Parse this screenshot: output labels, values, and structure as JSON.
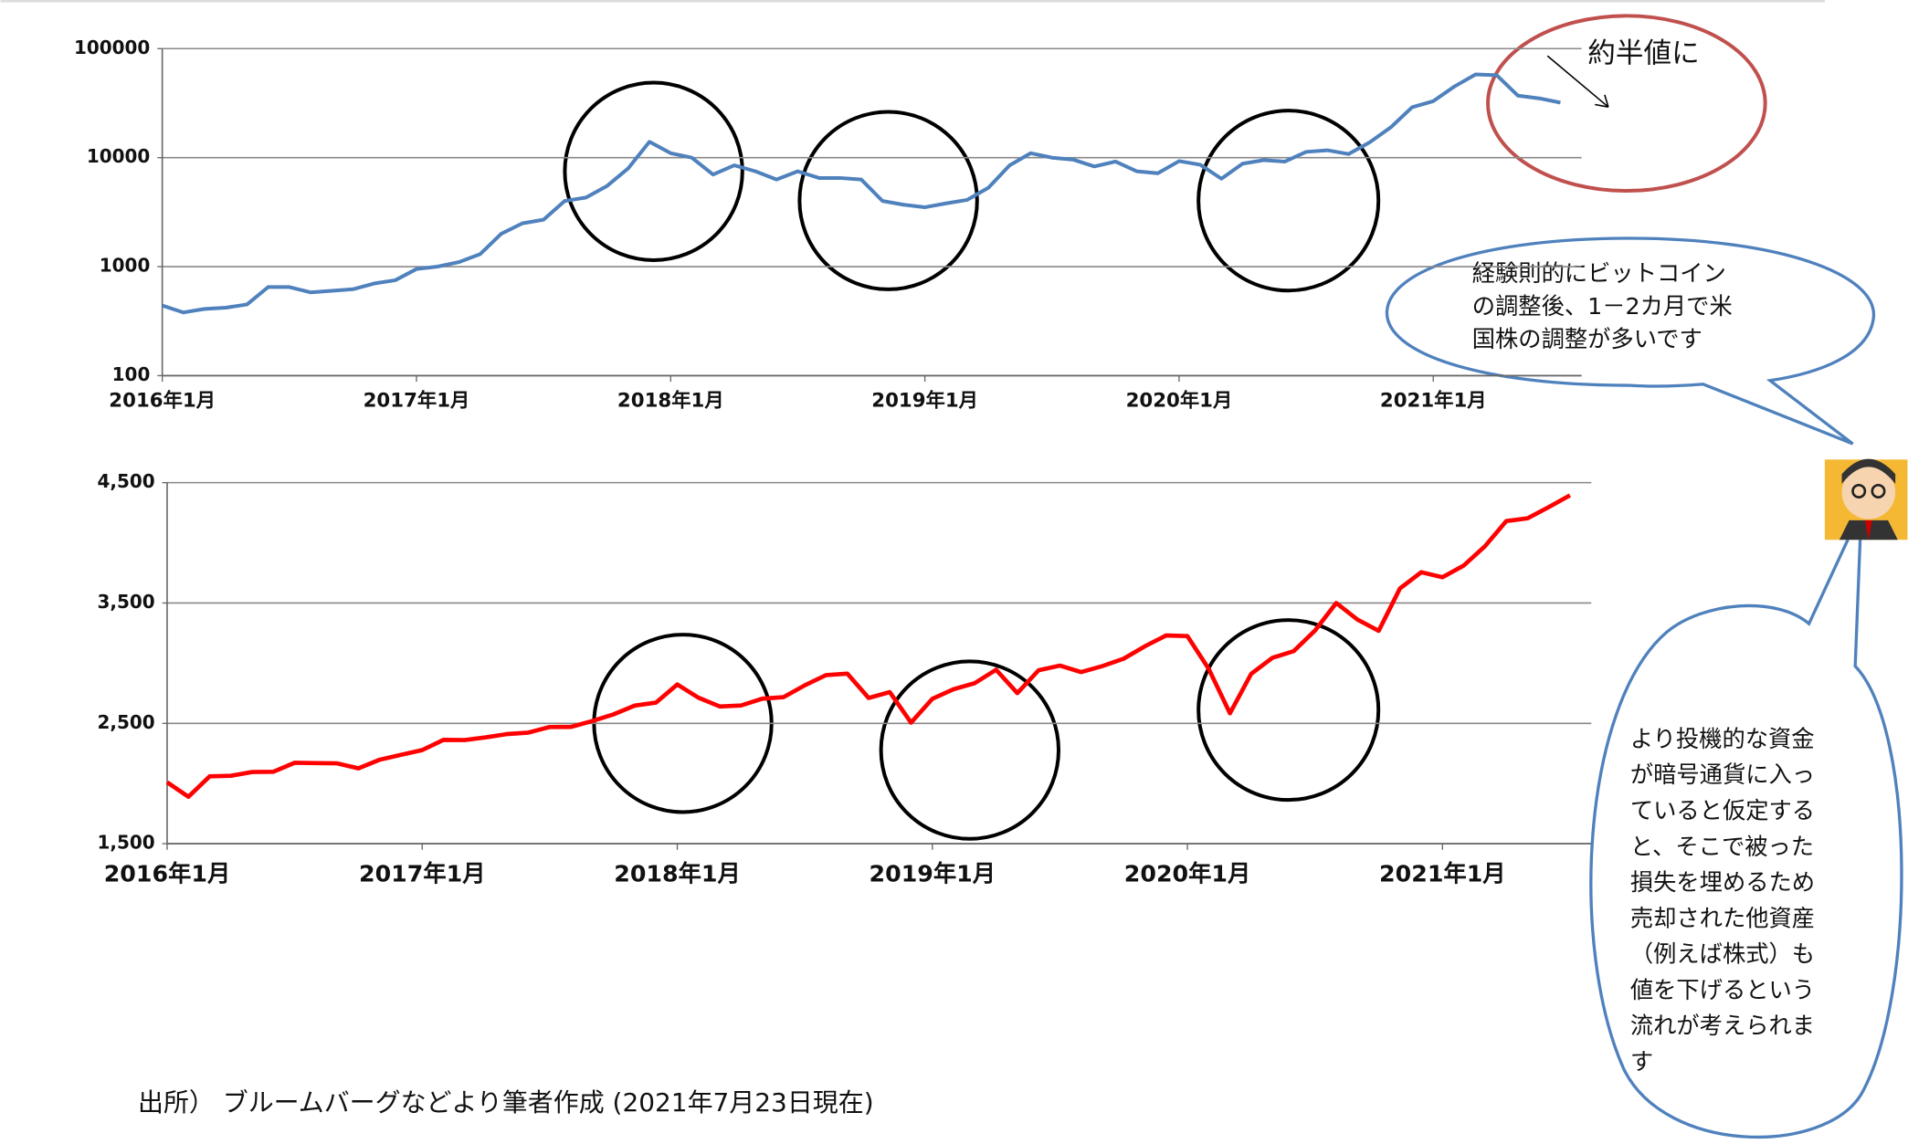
{
  "chart_data": [
    {
      "type": "line",
      "log_scale": true,
      "grid": true,
      "x": [
        "2016-01",
        "2016-02",
        "2016-03",
        "2016-04",
        "2016-05",
        "2016-06",
        "2016-07",
        "2016-08",
        "2016-09",
        "2016-10",
        "2016-11",
        "2016-12",
        "2017-01",
        "2017-02",
        "2017-03",
        "2017-04",
        "2017-05",
        "2017-06",
        "2017-07",
        "2017-08",
        "2017-09",
        "2017-10",
        "2017-11",
        "2017-12",
        "2018-01",
        "2018-02",
        "2018-03",
        "2018-04",
        "2018-05",
        "2018-06",
        "2018-07",
        "2018-08",
        "2018-09",
        "2018-10",
        "2018-11",
        "2018-12",
        "2019-01",
        "2019-02",
        "2019-03",
        "2019-04",
        "2019-05",
        "2019-06",
        "2019-07",
        "2019-08",
        "2019-09",
        "2019-10",
        "2019-11",
        "2019-12",
        "2020-01",
        "2020-02",
        "2020-03",
        "2020-04",
        "2020-05",
        "2020-06",
        "2020-07",
        "2020-08",
        "2020-09",
        "2020-10",
        "2020-11",
        "2020-12",
        "2021-01",
        "2021-02",
        "2021-03",
        "2021-04",
        "2021-05",
        "2021-06",
        "2021-07"
      ],
      "series": [
        {
          "color": "#4f81bd",
          "values": [
            440,
            380,
            410,
            420,
            450,
            650,
            650,
            580,
            600,
            620,
            700,
            750,
            950,
            1000,
            1100,
            1300,
            2000,
            2500,
            2700,
            4000,
            4300,
            5500,
            8000,
            14000,
            11000,
            10000,
            7000,
            8500,
            7500,
            6300,
            7500,
            6500,
            6500,
            6300,
            4000,
            3700,
            3500,
            3800,
            4100,
            5300,
            8500,
            11000,
            10000,
            9600,
            8300,
            9200,
            7500,
            7200,
            9300,
            8600,
            6400,
            8800,
            9500,
            9200,
            11300,
            11700,
            10800,
            13800,
            19000,
            29000,
            33000,
            45000,
            58000,
            57000,
            37000,
            35000,
            32000
          ]
        }
      ],
      "ylim": [
        100,
        100000
      ],
      "yticks": [
        100,
        1000,
        10000,
        100000
      ],
      "xlim": [
        "2016-01",
        "2021-08"
      ],
      "xticks": [
        {
          "value": "2016-01",
          "label": "2016年1月"
        },
        {
          "value": "2017-01",
          "label": "2017年1月"
        },
        {
          "value": "2018-01",
          "label": "2018年1月"
        },
        {
          "value": "2019-01",
          "label": "2019年1月"
        },
        {
          "value": "2020-01",
          "label": "2020年1月"
        },
        {
          "value": "2021-01",
          "label": "2021年1月"
        }
      ]
    },
    {
      "type": "line",
      "grid": true,
      "x": [
        "2016-01",
        "2016-02",
        "2016-03",
        "2016-04",
        "2016-05",
        "2016-06",
        "2016-07",
        "2016-08",
        "2016-09",
        "2016-10",
        "2016-11",
        "2016-12",
        "2017-01",
        "2017-02",
        "2017-03",
        "2017-04",
        "2017-05",
        "2017-06",
        "2017-07",
        "2017-08",
        "2017-09",
        "2017-10",
        "2017-11",
        "2017-12",
        "2018-01",
        "2018-02",
        "2018-03",
        "2018-04",
        "2018-05",
        "2018-06",
        "2018-07",
        "2018-08",
        "2018-09",
        "2018-10",
        "2018-11",
        "2018-12",
        "2019-01",
        "2019-02",
        "2019-03",
        "2019-04",
        "2019-05",
        "2019-06",
        "2019-07",
        "2019-08",
        "2019-09",
        "2019-10",
        "2019-11",
        "2019-12",
        "2020-01",
        "2020-02",
        "2020-03",
        "2020-04",
        "2020-05",
        "2020-06",
        "2020-07",
        "2020-08",
        "2020-09",
        "2020-10",
        "2020-11",
        "2020-12",
        "2021-01",
        "2021-02",
        "2021-03",
        "2021-04",
        "2021-05",
        "2021-06",
        "2021-07"
      ],
      "series": [
        {
          "color": "#ff0000",
          "values": [
            2010,
            1890,
            2060,
            2065,
            2096,
            2098,
            2173,
            2170,
            2168,
            2126,
            2198,
            2238,
            2278,
            2363,
            2362,
            2384,
            2411,
            2423,
            2470,
            2471,
            2519,
            2575,
            2647,
            2673,
            2823,
            2713,
            2640,
            2648,
            2705,
            2718,
            2816,
            2901,
            2913,
            2711,
            2760,
            2506,
            2704,
            2784,
            2834,
            2945,
            2752,
            2941,
            2980,
            2926,
            2976,
            3037,
            3140,
            3230,
            3225,
            2954,
            2584,
            2912,
            3044,
            3100,
            3271,
            3500,
            3363,
            3269,
            3621,
            3756,
            3714,
            3811,
            3972,
            4181,
            4204,
            4297,
            4395
          ]
        }
      ],
      "ylim": [
        1500,
        4500
      ],
      "yticks": [
        {
          "value": 1500,
          "label": "1,500"
        },
        {
          "value": 2500,
          "label": "2,500"
        },
        {
          "value": 3500,
          "label": "3,500"
        },
        {
          "value": 4500,
          "label": "4,500"
        }
      ],
      "xlim": [
        "2016-01",
        "2021-08"
      ],
      "xticks": [
        {
          "value": "2016-01",
          "label": "2016年1月"
        },
        {
          "value": "2017-01",
          "label": "2017年1月"
        },
        {
          "value": "2018-01",
          "label": "2018年1月"
        },
        {
          "value": "2019-01",
          "label": "2019年1月"
        },
        {
          "value": "2020-01",
          "label": "2020年1月"
        },
        {
          "value": "2021-01",
          "label": "2021年1月"
        }
      ]
    }
  ],
  "annotations": {
    "half": "約半値に",
    "bubble1": [
      "経験則的にビットコイン",
      "の調整後、1－2カ月で米",
      "国株の調整が多いです"
    ],
    "bubble2": [
      "より投機的な資金",
      "が暗号通貨に入っ",
      "ていると仮定する",
      "と、そこで被った",
      "損失を埋めるため",
      "売却された他資産",
      "（例えば株式）も",
      "値を下げるという",
      "流れが考えられま",
      "す"
    ],
    "source": "出所） ブルームバーグなどより筆者作成 (2021年7月23日現在)"
  }
}
